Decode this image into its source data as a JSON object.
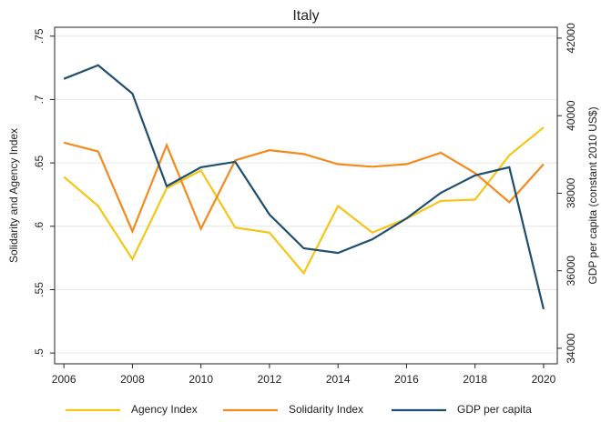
{
  "chart_data": {
    "type": "line",
    "title": "Italy",
    "y_label": "Solidarity and Agency Index",
    "y2_label": "GDP per capita (constant 2010 US$)",
    "x": [
      2006,
      2007,
      2008,
      2009,
      2010,
      2011,
      2012,
      2013,
      2014,
      2015,
      2016,
      2017,
      2018,
      2019,
      2020
    ],
    "xlim": [
      2005.73,
      2020.4
    ],
    "xticks": [
      2006,
      2008,
      2010,
      2012,
      2014,
      2016,
      2018,
      2020
    ],
    "ylim": [
      0.4915,
      0.757
    ],
    "yticks": [
      {
        "value": 0.5,
        "label": ".5"
      },
      {
        "value": 0.55,
        "label": ".55"
      },
      {
        "value": 0.6,
        "label": ".6"
      },
      {
        "value": 0.65,
        "label": ".65"
      },
      {
        "value": 0.7,
        "label": ".7"
      },
      {
        "value": 0.75,
        "label": ".75"
      }
    ],
    "y2lim": [
      33600,
      42280
    ],
    "y2ticks": [
      34000,
      36000,
      38000,
      40000,
      42000
    ],
    "grid": true,
    "legend": "bottom",
    "series": [
      {
        "name": "Agency Index",
        "color": "#f5c518",
        "values": [
          0.639,
          0.616,
          0.574,
          0.63,
          0.644,
          0.599,
          0.595,
          0.563,
          0.616,
          0.595,
          0.606,
          0.62,
          0.621,
          0.656,
          0.678
        ]
      },
      {
        "name": "Solidarity Index",
        "color": "#f28a1e",
        "values": [
          0.666,
          0.659,
          0.596,
          0.664,
          0.598,
          0.652,
          0.66,
          0.657,
          0.649,
          0.647,
          0.649,
          0.658,
          0.642,
          0.619,
          0.649
        ]
      },
      {
        "name": "GDP per capita",
        "color": "#1f4e6e",
        "axis": "y2",
        "values": [
          40950,
          41300,
          40570,
          38180,
          38670,
          38810,
          37450,
          36580,
          36460,
          36810,
          37350,
          38010,
          38460,
          38670,
          35010
        ]
      }
    ]
  }
}
